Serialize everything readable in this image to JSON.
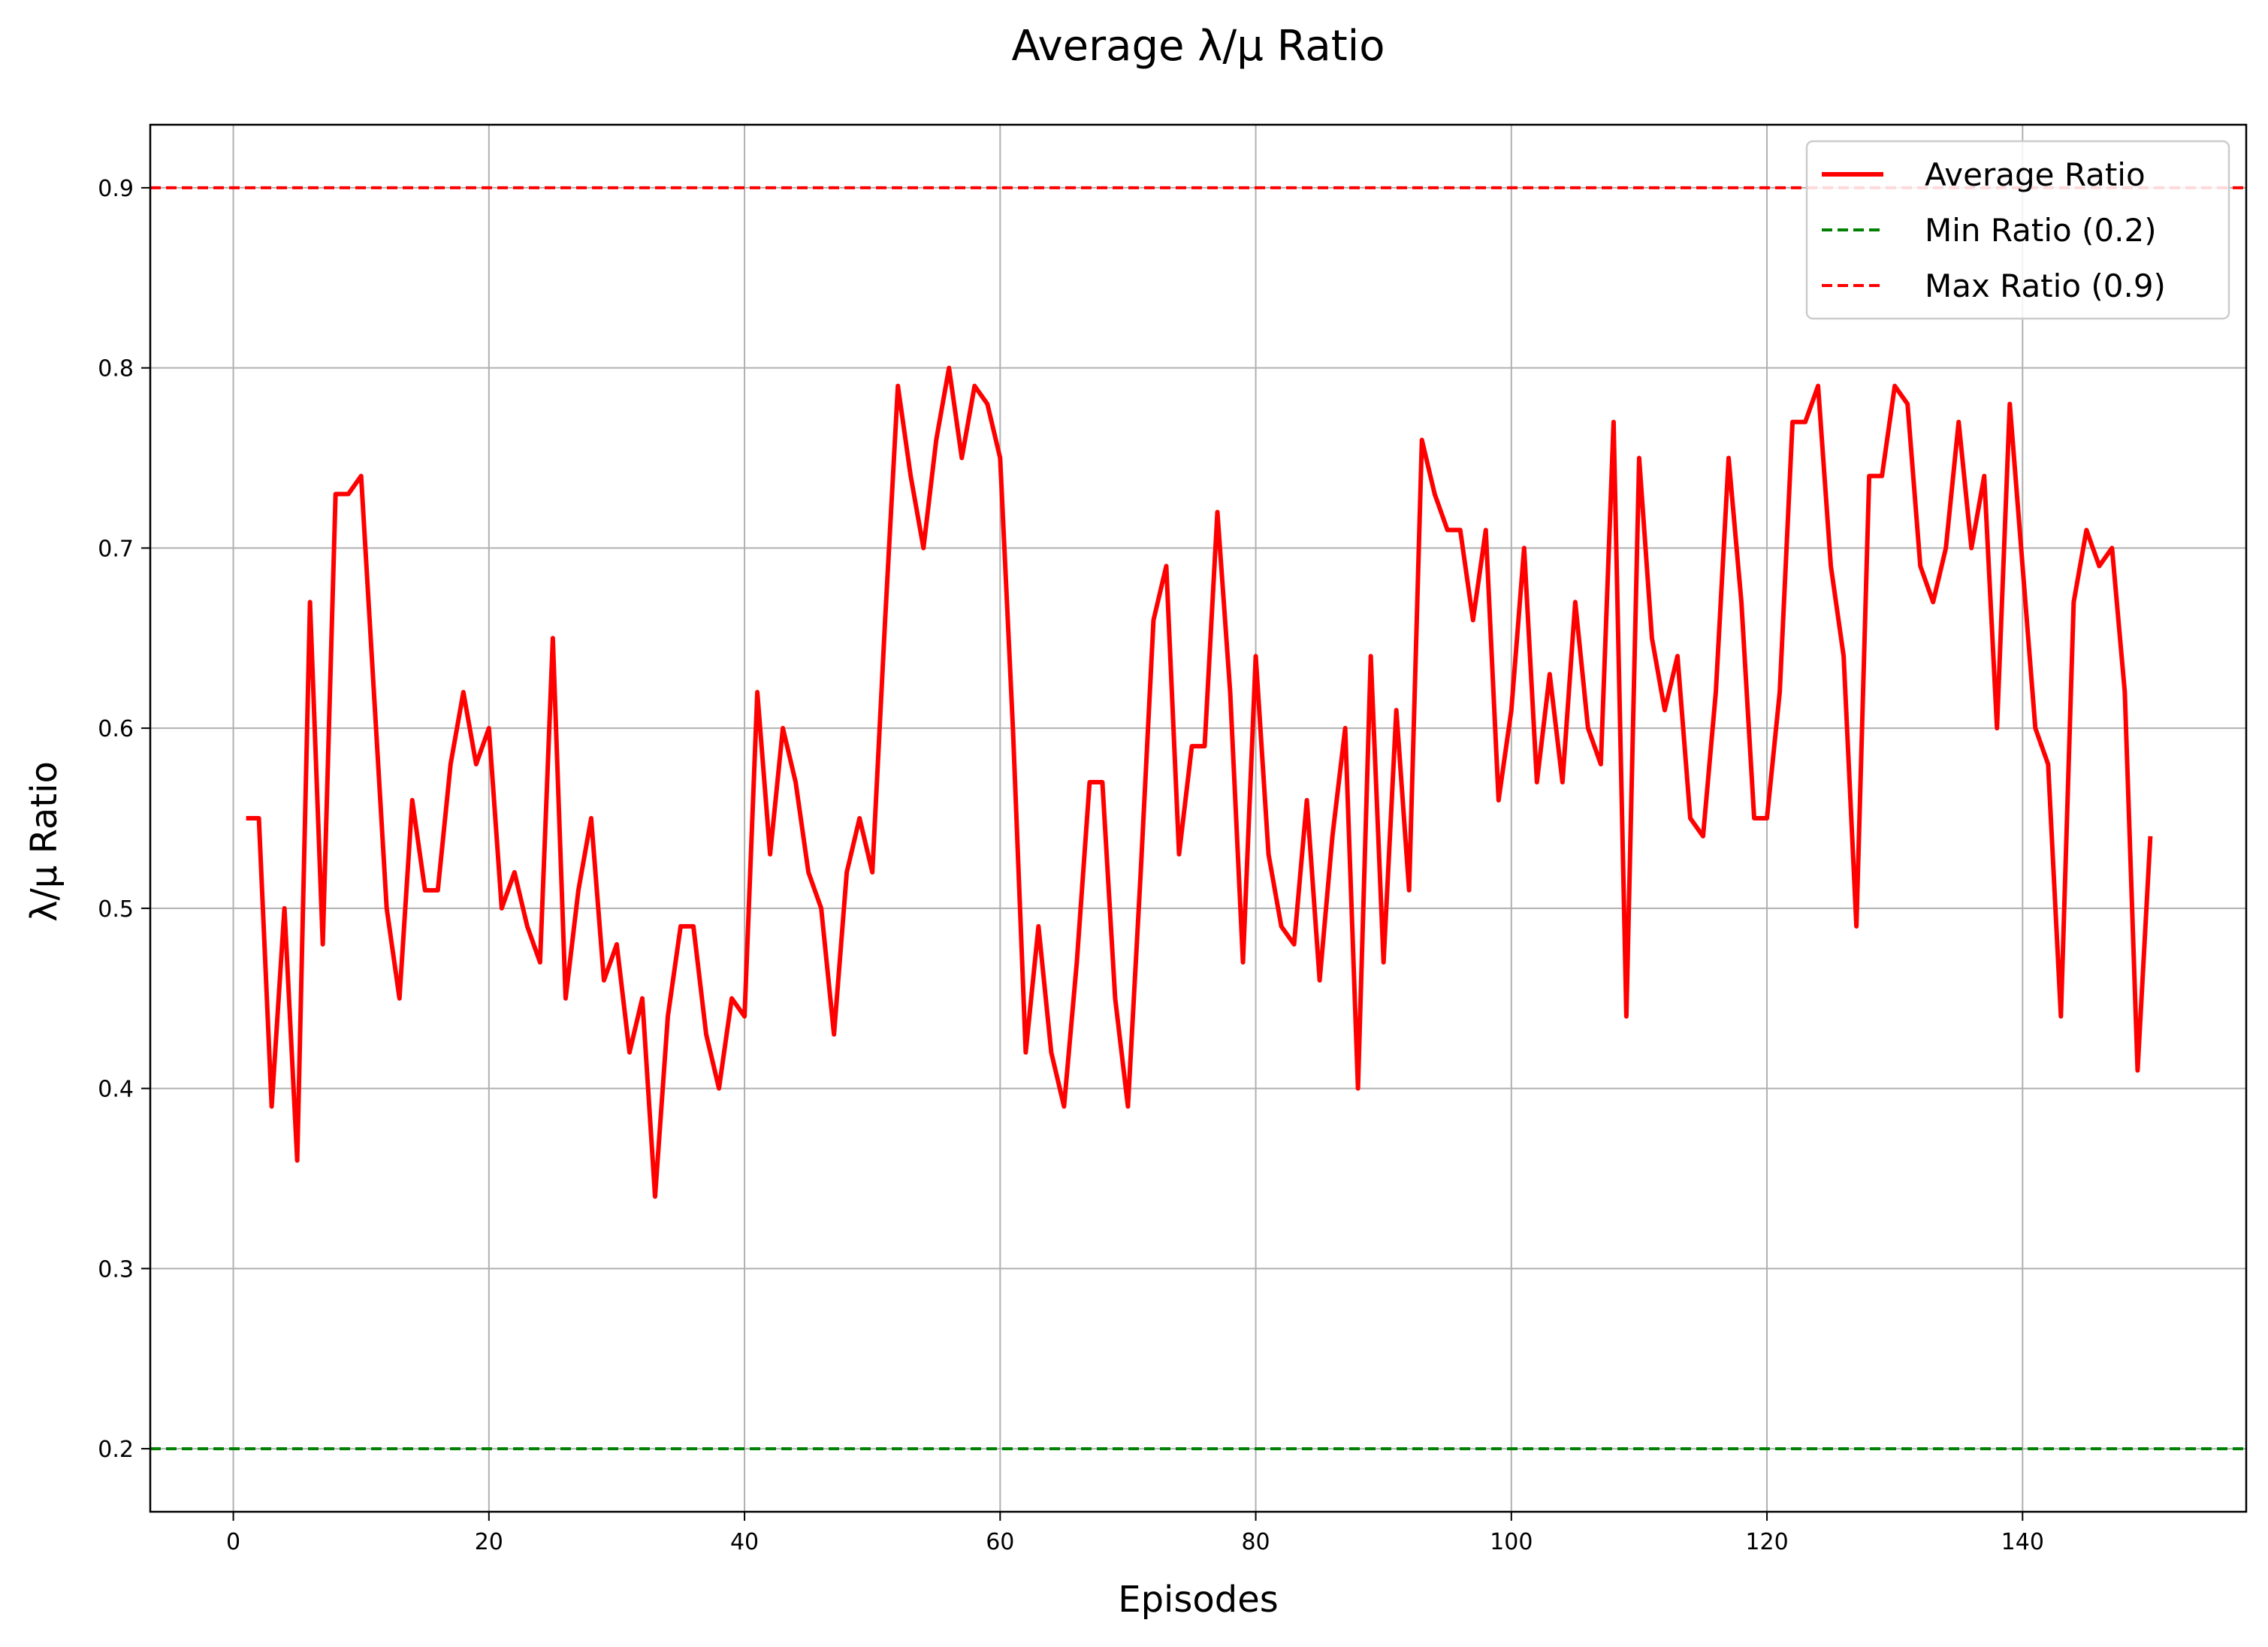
{
  "chart_data": {
    "type": "line",
    "title": "Average λ/μ Ratio",
    "xlabel": "Episodes",
    "ylabel": "λ/μ Ratio",
    "xlim": [
      -6.5,
      157.5
    ],
    "ylim": [
      0.165,
      0.935
    ],
    "x_ticks": [
      0,
      20,
      40,
      60,
      80,
      100,
      120,
      140
    ],
    "x_tick_labels": [
      "0",
      "20",
      "40",
      "60",
      "80",
      "100",
      "120",
      "140"
    ],
    "y_ticks": [
      0.2,
      0.3,
      0.4,
      0.5,
      0.6,
      0.7,
      0.8,
      0.9
    ],
    "y_tick_labels": [
      "0.2",
      "0.3",
      "0.4",
      "0.5",
      "0.6",
      "0.7",
      "0.8",
      "0.9"
    ],
    "grid": true,
    "legend_position": "top-right",
    "series": [
      {
        "name": "Average Ratio",
        "color": "#ff0000",
        "style": "solid",
        "x": [
          1,
          2,
          3,
          4,
          5,
          6,
          7,
          8,
          9,
          10,
          11,
          12,
          13,
          14,
          15,
          16,
          17,
          18,
          19,
          20,
          21,
          22,
          23,
          24,
          25,
          26,
          27,
          28,
          29,
          30,
          31,
          32,
          33,
          34,
          35,
          36,
          37,
          38,
          39,
          40,
          41,
          42,
          43,
          44,
          45,
          46,
          47,
          48,
          49,
          50,
          51,
          52,
          53,
          54,
          55,
          56,
          57,
          58,
          59,
          60,
          61,
          62,
          63,
          64,
          65,
          66,
          67,
          68,
          69,
          70,
          71,
          72,
          73,
          74,
          75,
          76,
          77,
          78,
          79,
          80,
          81,
          82,
          83,
          84,
          85,
          86,
          87,
          88,
          89,
          90,
          91,
          92,
          93,
          94,
          95,
          96,
          97,
          98,
          99,
          100,
          101,
          102,
          103,
          104,
          105,
          106,
          107,
          108,
          109,
          110,
          111,
          112,
          113,
          114,
          115,
          116,
          117,
          118,
          119,
          120,
          121,
          122,
          123,
          124,
          125,
          126,
          127,
          128,
          129,
          130,
          131,
          132,
          133,
          134,
          135,
          136,
          137,
          138,
          139,
          140,
          141,
          142,
          143,
          144,
          145,
          146,
          147,
          148,
          149,
          150
        ],
        "y": [
          0.55,
          0.55,
          0.39,
          0.5,
          0.36,
          0.67,
          0.48,
          0.73,
          0.73,
          0.74,
          0.62,
          0.5,
          0.45,
          0.56,
          0.51,
          0.51,
          0.58,
          0.62,
          0.58,
          0.6,
          0.5,
          0.52,
          0.49,
          0.47,
          0.65,
          0.45,
          0.51,
          0.55,
          0.46,
          0.48,
          0.42,
          0.45,
          0.34,
          0.44,
          0.49,
          0.49,
          0.43,
          0.4,
          0.45,
          0.44,
          0.62,
          0.53,
          0.6,
          0.57,
          0.52,
          0.5,
          0.43,
          0.52,
          0.55,
          0.52,
          0.66,
          0.79,
          0.74,
          0.7,
          0.76,
          0.8,
          0.75,
          0.79,
          0.78,
          0.75,
          0.6,
          0.42,
          0.49,
          0.42,
          0.39,
          0.47,
          0.57,
          0.57,
          0.45,
          0.39,
          0.52,
          0.66,
          0.69,
          0.53,
          0.59,
          0.59,
          0.72,
          0.62,
          0.47,
          0.64,
          0.53,
          0.49,
          0.48,
          0.56,
          0.46,
          0.54,
          0.6,
          0.4,
          0.64,
          0.47,
          0.61,
          0.51,
          0.76,
          0.73,
          0.71,
          0.71,
          0.66,
          0.71,
          0.56,
          0.61,
          0.7,
          0.57,
          0.63,
          0.57,
          0.67,
          0.6,
          0.58,
          0.77,
          0.44,
          0.75,
          0.65,
          0.61,
          0.64,
          0.55,
          0.54,
          0.62,
          0.75,
          0.67,
          0.55,
          0.55,
          0.62,
          0.77,
          0.77,
          0.79,
          0.69,
          0.64,
          0.49,
          0.74,
          0.74,
          0.79,
          0.78,
          0.69,
          0.67,
          0.7,
          0.77,
          0.7,
          0.74,
          0.6,
          0.78,
          0.69,
          0.6,
          0.58,
          0.44,
          0.67,
          0.71,
          0.69,
          0.7,
          0.62,
          0.41,
          0.54
        ]
      },
      {
        "name": "Min Ratio (0.2)",
        "color": "#008000",
        "style": "dashed",
        "y_const": 0.2
      },
      {
        "name": "Max Ratio (0.9)",
        "color": "#ff0000",
        "style": "dashed",
        "y_const": 0.9
      }
    ]
  }
}
